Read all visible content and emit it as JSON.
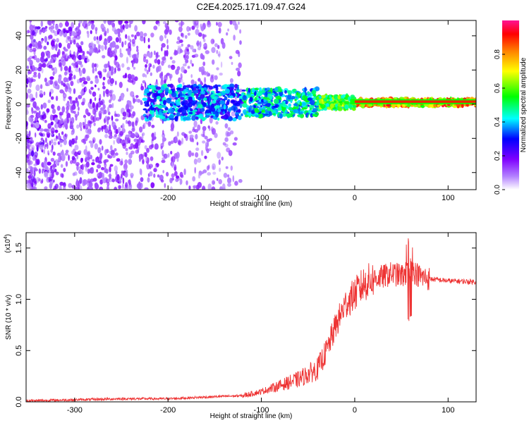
{
  "title": "C2E4.2025.171.09.47.G24",
  "colors": {
    "snr_line": "#ee3333",
    "colorbar": [
      "#ffffff",
      "#7f00ff",
      "#0000ff",
      "#00ffff",
      "#00ff00",
      "#ffff00",
      "#ff7f00",
      "#ff0000",
      "#ff1493"
    ]
  },
  "chart_data": [
    {
      "type": "heatmap",
      "xlabel": "Height of straight line (km)",
      "ylabel": "Frequency (Hz)",
      "xlim": [
        -352,
        130
      ],
      "ylim": [
        -50,
        49
      ],
      "xticks": [
        -300,
        -200,
        -100,
        0,
        100
      ],
      "yticks": [
        -40,
        -20,
        0,
        20,
        40
      ],
      "colorbar": {
        "label": "Normalized spectral amplitude",
        "range": [
          0,
          1
        ],
        "ticks": [
          0.0,
          0.2,
          0.4,
          0.6,
          0.8
        ]
      },
      "description_points": [
        {
          "x": -300,
          "freq_spread": [
            -50,
            49
          ],
          "amplitude": 0.12
        },
        {
          "x": -200,
          "freq_spread": [
            -8,
            12
          ],
          "amplitude": 0.25
        },
        {
          "x": -100,
          "freq_spread": [
            -10,
            10
          ],
          "amplitude": 0.4
        },
        {
          "x": -50,
          "freq_spread": [
            -6,
            4
          ],
          "amplitude": 0.5
        },
        {
          "x": 0,
          "freq_spread": [
            -1,
            3
          ],
          "amplitude": 0.7
        },
        {
          "x": 100,
          "freq_spread": [
            0,
            3
          ],
          "amplitude": 0.85
        }
      ]
    },
    {
      "type": "line",
      "xlabel": "Height of straight line (km)",
      "ylabel": "SNR (10 * v/v)",
      "y_scale_label": "(x10",
      "y_scale_exp": "4",
      "y_scale_close": ")",
      "xlim": [
        -352,
        130
      ],
      "ylim": [
        0,
        1.65
      ],
      "xticks": [
        -300,
        -200,
        -100,
        0,
        100
      ],
      "yticks": [
        0.0,
        0.5,
        1.0,
        1.5
      ],
      "series": [
        {
          "x": [
            -352,
            -300,
            -250,
            -200,
            -150,
            -120,
            -100,
            -80,
            -60,
            -40,
            -30,
            -20,
            -10,
            0,
            10,
            20,
            30,
            40,
            50,
            55,
            60,
            70,
            80,
            100,
            130
          ],
          "values": [
            0.01,
            0.02,
            0.03,
            0.03,
            0.05,
            0.06,
            0.1,
            0.16,
            0.22,
            0.32,
            0.5,
            0.75,
            0.95,
            1.05,
            1.15,
            1.2,
            1.22,
            1.25,
            1.23,
            1.25,
            1.3,
            1.22,
            1.2,
            1.18,
            1.17
          ]
        }
      ]
    }
  ]
}
